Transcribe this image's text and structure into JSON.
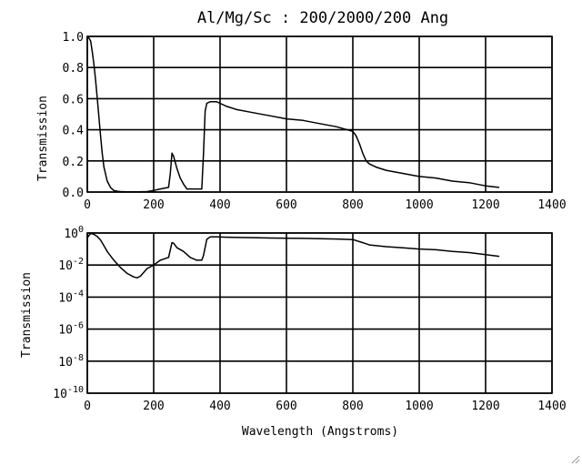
{
  "chart_data": [
    {
      "type": "line",
      "scale": "linear",
      "title": "Al/Mg/Sc : 200/2000/200 Ang",
      "xlabel": "",
      "ylabel": "Transmission",
      "xlim": [
        0,
        1400
      ],
      "ylim": [
        0.0,
        1.0
      ],
      "grid": true,
      "xticks": [
        0,
        200,
        400,
        600,
        800,
        1000,
        1200,
        1400
      ],
      "xtick_labels": [
        "0",
        "200",
        "400",
        "600",
        "800",
        "1000",
        "1200",
        "1400"
      ],
      "yticks": [
        0.0,
        0.2,
        0.4,
        0.6,
        0.8,
        1.0
      ],
      "ytick_labels": [
        "0.0",
        "0.2",
        "0.4",
        "0.6",
        "0.8",
        "1.0"
      ],
      "series": [
        {
          "x": [
            0,
            5,
            10,
            15,
            20,
            25,
            30,
            35,
            40,
            45,
            50,
            60,
            70,
            80,
            90,
            100,
            120,
            150,
            180,
            200,
            220,
            245,
            250,
            255,
            260,
            270,
            280,
            290,
            300,
            320,
            335,
            345,
            350,
            355,
            360,
            370,
            380,
            390,
            400,
            420,
            450,
            500,
            550,
            600,
            650,
            700,
            750,
            800,
            810,
            820,
            830,
            840,
            850,
            870,
            900,
            950,
            1000,
            1050,
            1100,
            1150,
            1200,
            1240
          ],
          "y": [
            1.0,
            0.99,
            0.97,
            0.9,
            0.82,
            0.72,
            0.6,
            0.48,
            0.36,
            0.25,
            0.16,
            0.07,
            0.03,
            0.01,
            0.005,
            0.003,
            0.002,
            0.002,
            0.003,
            0.01,
            0.02,
            0.03,
            0.12,
            0.25,
            0.23,
            0.15,
            0.09,
            0.05,
            0.02,
            0.02,
            0.02,
            0.02,
            0.25,
            0.52,
            0.57,
            0.58,
            0.58,
            0.58,
            0.57,
            0.55,
            0.53,
            0.51,
            0.49,
            0.47,
            0.46,
            0.44,
            0.42,
            0.39,
            0.36,
            0.31,
            0.25,
            0.2,
            0.18,
            0.16,
            0.14,
            0.12,
            0.1,
            0.09,
            0.07,
            0.06,
            0.04,
            0.03
          ]
        }
      ]
    },
    {
      "type": "line",
      "scale": "log",
      "title": "",
      "xlabel": "Wavelength (Angstroms)",
      "ylabel": "Transmission",
      "xlim": [
        0,
        1400
      ],
      "ylim": [
        1e-10,
        1.0
      ],
      "grid": true,
      "xticks": [
        0,
        200,
        400,
        600,
        800,
        1000,
        1200,
        1400
      ],
      "xtick_labels": [
        "0",
        "200",
        "400",
        "600",
        "800",
        "1000",
        "1200",
        "1400"
      ],
      "yticks": [
        1e-10,
        1e-08,
        1e-06,
        0.0001,
        0.01,
        1.0
      ],
      "ytick_labels": [
        {
          "base": "10",
          "exp": "-10"
        },
        {
          "base": "10",
          "exp": "-8"
        },
        {
          "base": "10",
          "exp": "-6"
        },
        {
          "base": "10",
          "exp": "-4"
        },
        {
          "base": "10",
          "exp": "-2"
        },
        {
          "base": "10",
          "exp": "0"
        }
      ],
      "series": [
        {
          "x": [
            0,
            10,
            20,
            30,
            40,
            50,
            60,
            80,
            100,
            120,
            140,
            150,
            160,
            180,
            200,
            220,
            245,
            255,
            260,
            270,
            290,
            310,
            330,
            345,
            350,
            360,
            370,
            390,
            420,
            450,
            500,
            550,
            600,
            650,
            700,
            750,
            800,
            830,
            850,
            900,
            950,
            1000,
            1050,
            1100,
            1150,
            1200,
            1240
          ],
          "y": [
            0.5,
            0.97,
            0.82,
            0.6,
            0.36,
            0.16,
            0.07,
            0.02,
            0.007,
            0.003,
            0.0018,
            0.0016,
            0.002,
            0.006,
            0.01,
            0.02,
            0.03,
            0.25,
            0.23,
            0.12,
            0.07,
            0.03,
            0.02,
            0.02,
            0.04,
            0.4,
            0.57,
            0.58,
            0.55,
            0.53,
            0.51,
            0.49,
            0.47,
            0.46,
            0.44,
            0.42,
            0.39,
            0.25,
            0.18,
            0.14,
            0.12,
            0.1,
            0.09,
            0.07,
            0.06,
            0.045,
            0.035
          ]
        }
      ]
    }
  ]
}
